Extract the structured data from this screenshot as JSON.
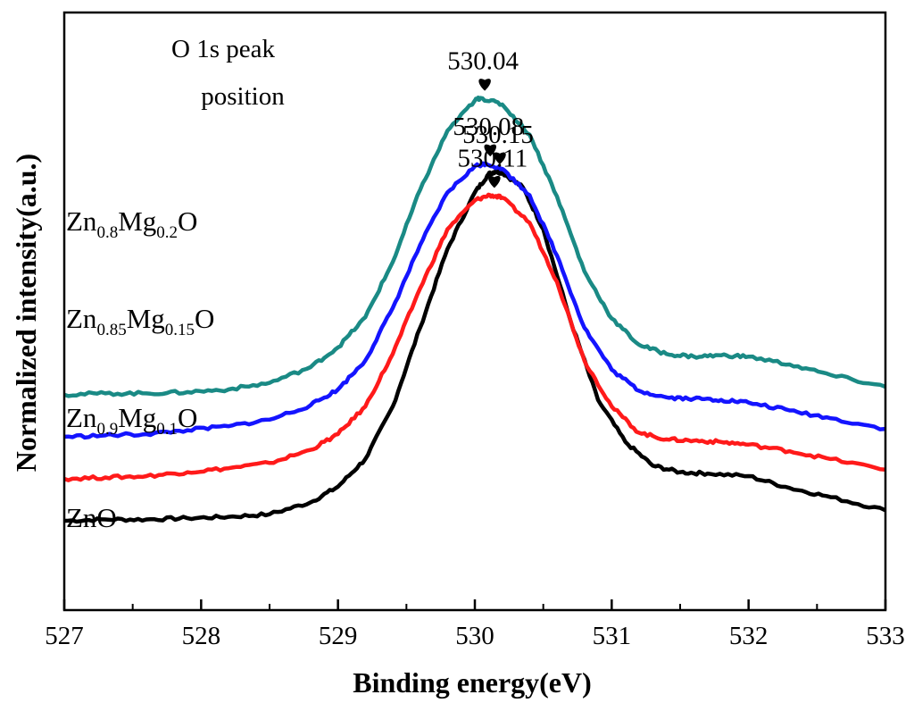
{
  "chart_data": {
    "type": "line",
    "title": "",
    "xlabel": "Binding energy(eV)",
    "ylabel": "Normalized intensity(a.u.)",
    "xlim": [
      527,
      533
    ],
    "x_ticks": [
      "527",
      "528",
      "529",
      "530",
      "531",
      "532",
      "533"
    ],
    "y_ticks": [],
    "grid": false,
    "annotation": [
      "O 1s peak",
      "position"
    ],
    "series": [
      {
        "key": "zno",
        "label_base": "ZnO",
        "label_parts": [
          {
            "t": "ZnO",
            "sub": false
          }
        ],
        "color": "#000000",
        "peak_x": 530.15,
        "peak_label": "530.15",
        "points": [
          [
            527.0,
            0.08
          ],
          [
            527.3,
            0.09
          ],
          [
            527.6,
            0.09
          ],
          [
            527.9,
            0.1
          ],
          [
            528.2,
            0.11
          ],
          [
            528.5,
            0.13
          ],
          [
            528.8,
            0.22
          ],
          [
            529.0,
            0.34
          ],
          [
            529.2,
            0.55
          ],
          [
            529.4,
            0.95
          ],
          [
            529.6,
            1.55
          ],
          [
            529.8,
            2.15
          ],
          [
            530.0,
            2.58
          ],
          [
            530.1,
            2.72
          ],
          [
            530.15,
            2.74
          ],
          [
            530.2,
            2.73
          ],
          [
            530.35,
            2.62
          ],
          [
            530.5,
            2.3
          ],
          [
            530.7,
            1.6
          ],
          [
            530.9,
            1.0
          ],
          [
            531.1,
            0.68
          ],
          [
            531.3,
            0.5
          ],
          [
            531.5,
            0.45
          ],
          [
            531.7,
            0.44
          ],
          [
            532.0,
            0.42
          ],
          [
            532.3,
            0.33
          ],
          [
            532.6,
            0.26
          ],
          [
            533.0,
            0.16
          ]
        ]
      },
      {
        "key": "zn09",
        "label_base": "Zn0.9Mg0.1O",
        "label_parts": [
          {
            "t": "Zn",
            "sub": false
          },
          {
            "t": "0.9",
            "sub": true
          },
          {
            "t": "Mg",
            "sub": false
          },
          {
            "t": "0.1",
            "sub": true
          },
          {
            "t": "O",
            "sub": false
          }
        ],
        "color": "#ff1a1a",
        "peak_x": 530.11,
        "peak_label": "530.11",
        "points": [
          [
            527.0,
            0.4
          ],
          [
            527.3,
            0.41
          ],
          [
            527.6,
            0.42
          ],
          [
            527.9,
            0.45
          ],
          [
            528.2,
            0.48
          ],
          [
            528.5,
            0.52
          ],
          [
            528.8,
            0.62
          ],
          [
            529.0,
            0.74
          ],
          [
            529.2,
            0.95
          ],
          [
            529.4,
            1.35
          ],
          [
            529.6,
            1.85
          ],
          [
            529.8,
            2.3
          ],
          [
            530.0,
            2.52
          ],
          [
            530.11,
            2.56
          ],
          [
            530.2,
            2.54
          ],
          [
            530.4,
            2.35
          ],
          [
            530.6,
            1.9
          ],
          [
            530.8,
            1.3
          ],
          [
            531.0,
            0.95
          ],
          [
            531.2,
            0.75
          ],
          [
            531.4,
            0.7
          ],
          [
            531.6,
            0.69
          ],
          [
            531.8,
            0.68
          ],
          [
            532.0,
            0.66
          ],
          [
            532.3,
            0.61
          ],
          [
            532.6,
            0.55
          ],
          [
            533.0,
            0.47
          ]
        ]
      },
      {
        "key": "zn085",
        "label_base": "Zn0.85Mg0.15O",
        "label_parts": [
          {
            "t": "Zn",
            "sub": false
          },
          {
            "t": "0.85",
            "sub": true
          },
          {
            "t": "Mg",
            "sub": false
          },
          {
            "t": "0.15",
            "sub": true
          },
          {
            "t": "O",
            "sub": false
          }
        ],
        "color": "#1414ff",
        "peak_x": 530.08,
        "peak_label": "530.08",
        "points": [
          [
            527.0,
            0.72
          ],
          [
            527.3,
            0.73
          ],
          [
            527.6,
            0.74
          ],
          [
            527.9,
            0.77
          ],
          [
            528.2,
            0.8
          ],
          [
            528.5,
            0.85
          ],
          [
            528.8,
            0.96
          ],
          [
            529.0,
            1.08
          ],
          [
            529.2,
            1.3
          ],
          [
            529.4,
            1.7
          ],
          [
            529.6,
            2.18
          ],
          [
            529.8,
            2.58
          ],
          [
            530.0,
            2.78
          ],
          [
            530.08,
            2.8
          ],
          [
            530.2,
            2.76
          ],
          [
            530.4,
            2.56
          ],
          [
            530.6,
            2.1
          ],
          [
            530.8,
            1.55
          ],
          [
            531.0,
            1.23
          ],
          [
            531.2,
            1.07
          ],
          [
            531.4,
            1.02
          ],
          [
            531.6,
            1.01
          ],
          [
            531.8,
            1.0
          ],
          [
            532.0,
            0.98
          ],
          [
            532.3,
            0.92
          ],
          [
            532.6,
            0.86
          ],
          [
            533.0,
            0.78
          ]
        ]
      },
      {
        "key": "zn08",
        "label_base": "Zn0.8Mg0.2O",
        "label_parts": [
          {
            "t": "Zn",
            "sub": false
          },
          {
            "t": "0.8",
            "sub": true
          },
          {
            "t": "Mg",
            "sub": false
          },
          {
            "t": "0.2",
            "sub": true
          },
          {
            "t": "O",
            "sub": false
          }
        ],
        "color": "#1a8a85",
        "peak_x": 530.04,
        "peak_label": "530.04",
        "points": [
          [
            527.0,
            1.04
          ],
          [
            527.3,
            1.05
          ],
          [
            527.6,
            1.05
          ],
          [
            527.9,
            1.06
          ],
          [
            528.2,
            1.08
          ],
          [
            528.5,
            1.13
          ],
          [
            528.8,
            1.25
          ],
          [
            529.0,
            1.4
          ],
          [
            529.2,
            1.63
          ],
          [
            529.4,
            2.05
          ],
          [
            529.6,
            2.6
          ],
          [
            529.8,
            3.05
          ],
          [
            530.0,
            3.28
          ],
          [
            530.04,
            3.3
          ],
          [
            530.2,
            3.25
          ],
          [
            530.4,
            3.02
          ],
          [
            530.6,
            2.55
          ],
          [
            530.8,
            1.98
          ],
          [
            531.0,
            1.62
          ],
          [
            531.2,
            1.42
          ],
          [
            531.4,
            1.35
          ],
          [
            531.6,
            1.33
          ],
          [
            531.8,
            1.34
          ],
          [
            532.0,
            1.33
          ],
          [
            532.3,
            1.27
          ],
          [
            532.6,
            1.19
          ],
          [
            533.0,
            1.1
          ]
        ]
      }
    ]
  }
}
